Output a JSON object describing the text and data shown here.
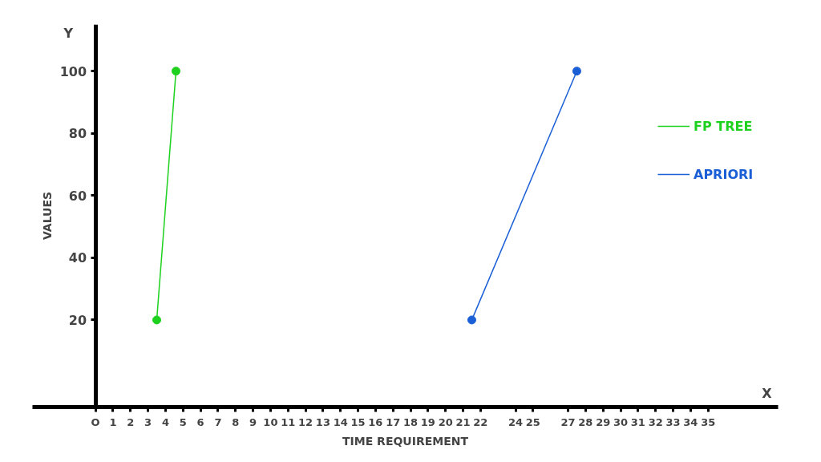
{
  "chart_data": {
    "type": "line",
    "xlabel": "TIME REQUIREMENT",
    "ylabel": "VALUES",
    "annotations": [
      "Y",
      "X"
    ],
    "xlim": [
      -3.6,
      39
    ],
    "ylim": [
      -8,
      115
    ],
    "xticks": [
      {
        "value": 0,
        "label": "O"
      },
      1,
      2,
      3,
      4,
      5,
      6,
      7,
      8,
      9,
      10,
      11,
      12,
      13,
      14,
      15,
      16,
      17,
      18,
      19,
      20,
      21,
      22,
      24,
      25,
      27,
      28,
      29,
      30,
      31,
      32,
      33,
      34,
      35
    ],
    "yticks": [
      20,
      40,
      60,
      80,
      100
    ],
    "grid": false,
    "legend": "right",
    "marker": "circle",
    "line_style": "solid",
    "series": [
      {
        "name": "FP TREE",
        "color": "#1fd11f",
        "x": [
          3.5,
          4.6
        ],
        "values": [
          20,
          100
        ]
      },
      {
        "name": "APRIORI",
        "color": "#1a5fd6",
        "x": [
          21.5,
          27.5
        ],
        "values": [
          20,
          100
        ]
      }
    ]
  }
}
